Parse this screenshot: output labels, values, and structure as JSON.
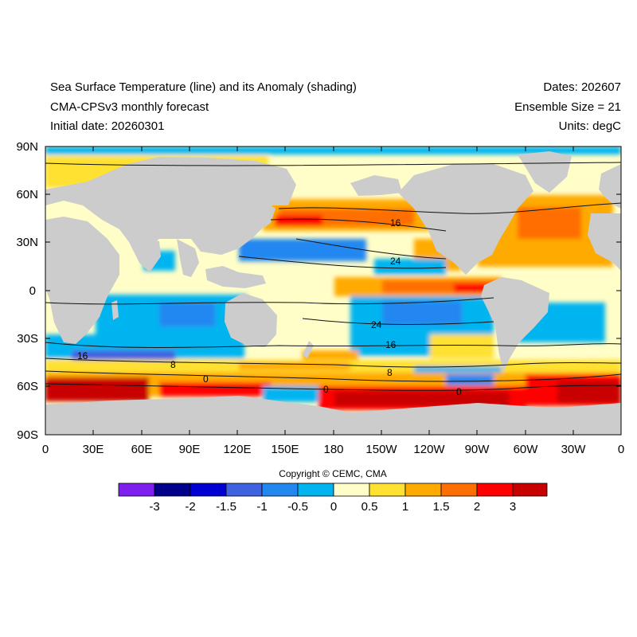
{
  "header": {
    "title": "Sea Surface Temperature (line) and its Anomaly (shading)",
    "model": "CMA-CPSv3 monthly forecast",
    "initial_date": "Initial date: 20260301",
    "dates": "Dates: 202607",
    "ensemble": "Ensemble Size = 21",
    "units": "Units: degC"
  },
  "map": {
    "projection": "cylindrical equidistant",
    "land_color": "#cccccc",
    "lat_ticks": [
      "90N",
      "60N",
      "30N",
      "0",
      "30S",
      "60S",
      "90S"
    ],
    "lon_ticks": [
      "0",
      "30E",
      "60E",
      "90E",
      "120E",
      "150E",
      "180",
      "150W",
      "120W",
      "90W",
      "60W",
      "30W",
      "0"
    ],
    "contour_labels": [
      "16",
      "24",
      "24",
      "16",
      "16",
      "8",
      "8",
      "0",
      "0",
      "0"
    ]
  },
  "colorbar": {
    "colors": [
      "#7f1fef",
      "#00008a",
      "#0000d2",
      "#3f62e0",
      "#2387f0",
      "#00b4f0",
      "#fffdc8",
      "#ffe132",
      "#ffaa00",
      "#ff6e00",
      "#ff0000",
      "#c80000"
    ],
    "labels": [
      "-3",
      "-2",
      "-1.5",
      "-1",
      "-0.5",
      "0",
      "0.5",
      "1",
      "1.5",
      "2",
      "3"
    ]
  },
  "copyright": "Copyright © CEMC, CMA"
}
